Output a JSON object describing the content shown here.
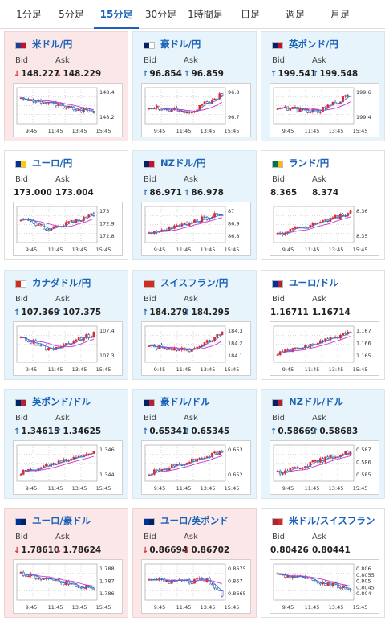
{
  "tabs": [
    {
      "label": "1分足",
      "active": false
    },
    {
      "label": "5分足",
      "active": false
    },
    {
      "label": "15分足",
      "active": true
    },
    {
      "label": "30分足",
      "active": false
    },
    {
      "label": "1時間足",
      "active": false
    },
    {
      "label": "日足",
      "active": false
    },
    {
      "label": "週足",
      "active": false
    },
    {
      "label": "月足",
      "active": false
    }
  ],
  "labels": {
    "bid": "Bid",
    "ask": "Ask"
  },
  "x_ticks": [
    "9:45",
    "11:45",
    "13:45",
    "15:45"
  ],
  "colors": {
    "accent": "#1a63b8",
    "up_bg": "#e8f4fb",
    "down_bg": "#fbe7e8",
    "candle": "#e8232a",
    "ma": "#cc33cc",
    "line": "#2a7fd4"
  },
  "cards": [
    {
      "pair": "米ドル/円",
      "bid": "148.227",
      "ask": "148.229",
      "dir": "down",
      "flag": [
        "#1f3f93",
        "#c8102e"
      ],
      "yticks": [
        "148.4",
        "148.2"
      ],
      "trend": "down"
    },
    {
      "pair": "豪ドル/円",
      "bid": "96.854",
      "ask": "96.859",
      "dir": "up",
      "flag": [
        "#012169",
        "#ffffff"
      ],
      "yticks": [
        "96.8",
        "96.7"
      ],
      "trend": "updip"
    },
    {
      "pair": "英ポンド/円",
      "bid": "199.541",
      "ask": "199.548",
      "dir": "up",
      "flag": [
        "#012169",
        "#c8102e"
      ],
      "yticks": [
        "199.6",
        "199.4"
      ],
      "trend": "updip"
    },
    {
      "pair": "ユーロ/円",
      "bid": "173.000",
      "ask": "173.004",
      "dir": "flat",
      "flag": [
        "#003399",
        "#ffcc00"
      ],
      "yticks": [
        "173",
        "172.9",
        "172.8"
      ],
      "trend": "vshape"
    },
    {
      "pair": "NZドル/円",
      "bid": "86.971",
      "ask": "86.978",
      "dir": "up",
      "flag": [
        "#012169",
        "#c8102e"
      ],
      "yticks": [
        "87",
        "86.9",
        "86.8"
      ],
      "trend": "up"
    },
    {
      "pair": "ランド/円",
      "bid": "8.365",
      "ask": "8.374",
      "dir": "flat",
      "flag": [
        "#007749",
        "#ffb612"
      ],
      "yticks": [
        "8.36",
        "8.35"
      ],
      "trend": "up"
    },
    {
      "pair": "カナダドル/円",
      "bid": "107.369",
      "ask": "107.375",
      "dir": "up",
      "flag": [
        "#d52b1e",
        "#ffffff"
      ],
      "yticks": [
        "107.4",
        "107.3"
      ],
      "trend": "vshape"
    },
    {
      "pair": "スイスフラン/円",
      "bid": "184.279",
      "ask": "184.295",
      "dir": "up",
      "flag": [
        "#d52b1e",
        "#d52b1e"
      ],
      "yticks": [
        "184.3",
        "184.2",
        "184.1"
      ],
      "trend": "updip"
    },
    {
      "pair": "ユーロ/ドル",
      "bid": "1.16711",
      "ask": "1.16714",
      "dir": "flat",
      "flag": [
        "#003399",
        "#b22234"
      ],
      "yticks": [
        "1.167",
        "1.166",
        "1.165"
      ],
      "trend": "up"
    },
    {
      "pair": "英ポンド/ドル",
      "bid": "1.34615",
      "ask": "1.34625",
      "dir": "up",
      "flag": [
        "#012169",
        "#b22234"
      ],
      "yticks": [
        "1.346",
        "1.344"
      ],
      "trend": "up"
    },
    {
      "pair": "豪ドル/ドル",
      "bid": "0.65341",
      "ask": "0.65345",
      "dir": "up",
      "flag": [
        "#012169",
        "#b22234"
      ],
      "yticks": [
        "0.653",
        "0.652"
      ],
      "trend": "up"
    },
    {
      "pair": "NZドル/ドル",
      "bid": "0.58669",
      "ask": "0.58683",
      "dir": "up",
      "flag": [
        "#012169",
        "#b22234"
      ],
      "yticks": [
        "0.587",
        "0.586",
        "0.585"
      ],
      "trend": "up"
    },
    {
      "pair": "ユーロ/豪ドル",
      "bid": "1.78610",
      "ask": "1.78624",
      "dir": "down",
      "flag": [
        "#003399",
        "#012169"
      ],
      "yticks": [
        "1.788",
        "1.787",
        "1.786"
      ],
      "trend": "down"
    },
    {
      "pair": "ユーロ/英ポンド",
      "bid": "0.86694",
      "ask": "0.86702",
      "dir": "down",
      "flag": [
        "#003399",
        "#012169"
      ],
      "yticks": [
        "0.8675",
        "0.867",
        "0.8665"
      ],
      "trend": "flatdrop"
    },
    {
      "pair": "米ドル/スイスフラン",
      "bid": "0.80426",
      "ask": "0.80441",
      "dir": "flat",
      "flag": [
        "#b22234",
        "#d52b1e"
      ],
      "yticks": [
        "0.806",
        "0.8055",
        "0.805",
        "0.8045",
        "0.804"
      ],
      "trend": "down"
    }
  ]
}
